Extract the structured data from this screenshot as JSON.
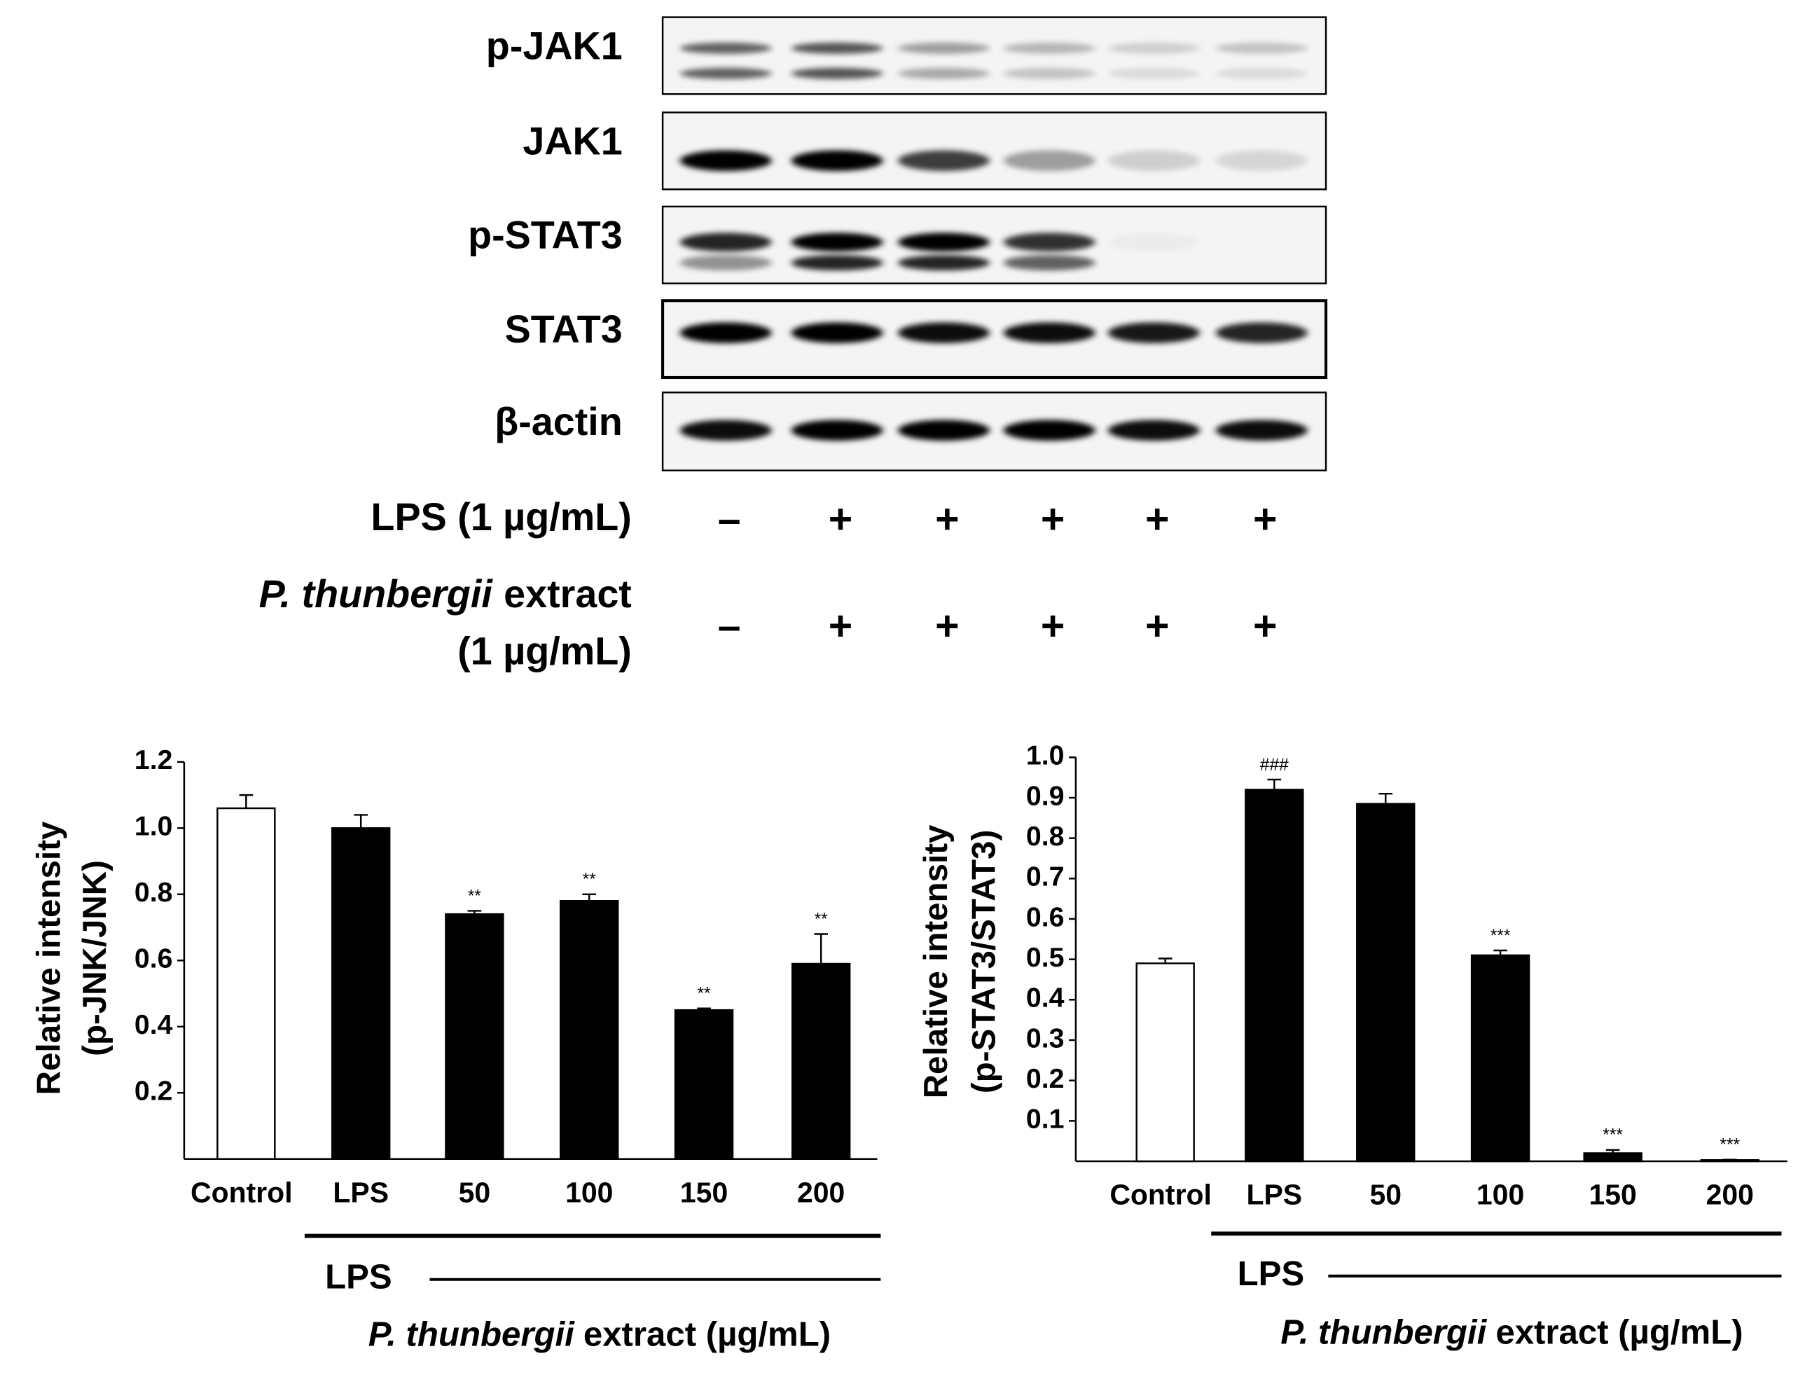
{
  "blot": {
    "rows": [
      "p-JAK1",
      "JAK1",
      "p-STAT3",
      "STAT3",
      "β-actin"
    ],
    "treatments": [
      {
        "label": "LPS (1 µg/mL)",
        "signs": [
          "–",
          "+",
          "+",
          "+",
          "+",
          "+"
        ]
      },
      {
        "label_italic": "P. thunbergii",
        "label": "extract",
        "label_line2": "(1 µg/mL)",
        "signs": [
          "–",
          "+",
          "+",
          "+",
          "+",
          "+"
        ]
      }
    ]
  },
  "chart_data": [
    {
      "type": "bar",
      "ylabel": [
        "Relative intensity",
        "(p-JNK/JNK)"
      ],
      "categories": [
        "Control",
        "LPS",
        "50",
        "100",
        "150",
        "200"
      ],
      "values": [
        1.06,
        1.0,
        0.74,
        0.78,
        0.45,
        0.59
      ],
      "errors": [
        0.04,
        0.04,
        0.01,
        0.02,
        0.005,
        0.09
      ],
      "colors": [
        "#ffffff",
        "#000000",
        "#000000",
        "#000000",
        "#000000",
        "#000000"
      ],
      "significance": [
        null,
        null,
        "**",
        "**",
        "**",
        "**"
      ],
      "ylim": [
        0,
        1.2
      ],
      "yticks": [
        0.2,
        0.4,
        0.6,
        0.8,
        {
          "value": 1,
          "label": "1.0"
        },
        1.2
      ],
      "grid": false,
      "group_label": "LPS",
      "xlabel_italic": "P. thunbergii",
      "xlabel": "extract (µg/mL)"
    },
    {
      "type": "bar",
      "ylabel": [
        "Relative intensity",
        "(p-STAT3/STAT3)"
      ],
      "categories": [
        "Control",
        "LPS",
        "50",
        "100",
        "150",
        "200"
      ],
      "values": [
        0.49,
        0.92,
        0.885,
        0.51,
        0.02,
        0.003
      ],
      "errors": [
        0.012,
        0.025,
        0.025,
        0.012,
        0.008,
        0.001
      ],
      "colors": [
        "#ffffff",
        "#000000",
        "#000000",
        "#000000",
        "#000000",
        "#000000"
      ],
      "significance": [
        null,
        "###",
        null,
        "***",
        "***",
        "***"
      ],
      "ylim": [
        0,
        1.0
      ],
      "yticks": [
        0.1,
        0.2,
        0.3,
        0.4,
        0.5,
        0.6,
        0.7,
        0.8,
        0.9,
        {
          "value": 1,
          "label": "1.0"
        }
      ],
      "grid": false,
      "group_label": "LPS",
      "xlabel_italic": "P. thunbergii",
      "xlabel": "extract (µg/mL)"
    }
  ]
}
